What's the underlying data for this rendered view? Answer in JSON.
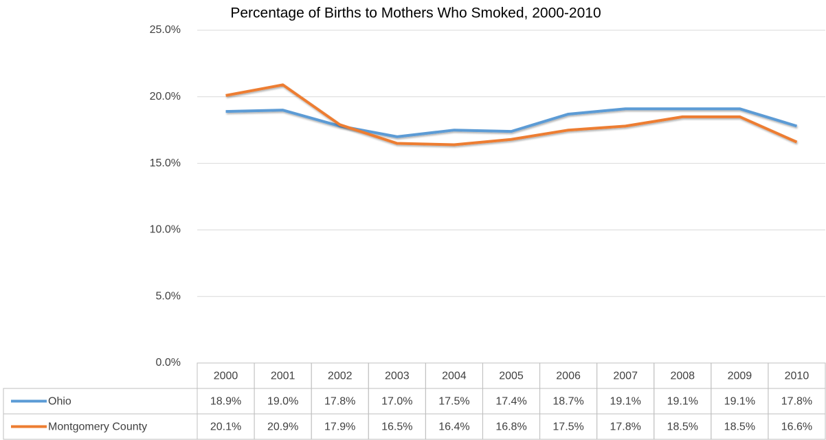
{
  "chart_data": {
    "type": "line",
    "title": "Percentage of Births to Mothers Who Smoked, 2000-2010",
    "categories": [
      "2000",
      "2001",
      "2002",
      "2003",
      "2004",
      "2005",
      "2006",
      "2007",
      "2008",
      "2009",
      "2010"
    ],
    "series": [
      {
        "name": "Ohio",
        "color": "#5b9bd5",
        "values": [
          18.9,
          19.0,
          17.8,
          17.0,
          17.5,
          17.4,
          18.7,
          19.1,
          19.1,
          19.1,
          17.8
        ],
        "value_labels": [
          "18.9%",
          "19.0%",
          "17.8%",
          "17.0%",
          "17.5%",
          "17.4%",
          "18.7%",
          "19.1%",
          "19.1%",
          "19.1%",
          "17.8%"
        ]
      },
      {
        "name": "Montgomery County",
        "color": "#ed7d31",
        "values": [
          20.1,
          20.9,
          17.9,
          16.5,
          16.4,
          16.8,
          17.5,
          17.8,
          18.5,
          18.5,
          16.6
        ],
        "value_labels": [
          "20.1%",
          "20.9%",
          "17.9%",
          "16.5%",
          "16.4%",
          "16.8%",
          "17.5%",
          "17.8%",
          "18.5%",
          "18.5%",
          "16.6%"
        ]
      }
    ],
    "ylim": [
      0,
      25
    ],
    "yticks": [
      {
        "value": 0,
        "label": "0.0%"
      },
      {
        "value": 5,
        "label": "5.0%"
      },
      {
        "value": 10,
        "label": "10.0%"
      },
      {
        "value": 15,
        "label": "15.0%"
      },
      {
        "value": 20,
        "label": "20.0%"
      },
      {
        "value": 25,
        "label": "25.0%"
      }
    ],
    "grid": true
  }
}
